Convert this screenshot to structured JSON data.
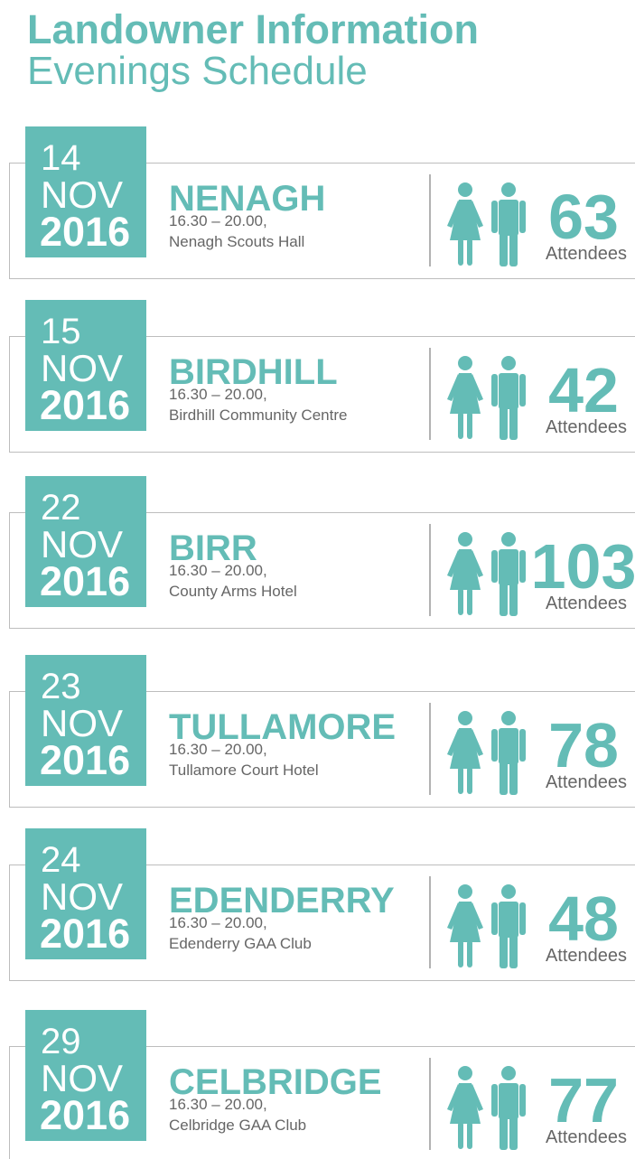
{
  "header": {
    "title": "Landowner Information",
    "subtitle": "Evenings Schedule"
  },
  "attendees_label": "Attendees",
  "events": [
    {
      "day": "14",
      "month": "NOV",
      "year": "2016",
      "town": "NENAGH",
      "time": "16.30 – 20.00,",
      "venue": "Nenagh Scouts Hall",
      "attendees": "63"
    },
    {
      "day": "15",
      "month": "NOV",
      "year": "2016",
      "town": "BIRDHILL",
      "time": "16.30 – 20.00,",
      "venue": "Birdhill Community Centre",
      "attendees": "42"
    },
    {
      "day": "22",
      "month": "NOV",
      "year": "2016",
      "town": "BIRR",
      "time": "16.30 – 20.00,",
      "venue": "County Arms Hotel",
      "attendees": "103"
    },
    {
      "day": "23",
      "month": "NOV",
      "year": "2016",
      "town": "TULLAMORE",
      "time": "16.30 – 20.00,",
      "venue": "Tullamore Court Hotel",
      "attendees": "78"
    },
    {
      "day": "24",
      "month": "NOV",
      "year": "2016",
      "town": "EDENDERRY",
      "time": "16.30 – 20.00,",
      "venue": "Edenderry GAA Club",
      "attendees": "48"
    },
    {
      "day": "29",
      "month": "NOV",
      "year": "2016",
      "town": "CELBRIDGE",
      "time": "16.30 – 20.00,",
      "venue": "Celbridge GAA Club",
      "attendees": "77"
    }
  ]
}
